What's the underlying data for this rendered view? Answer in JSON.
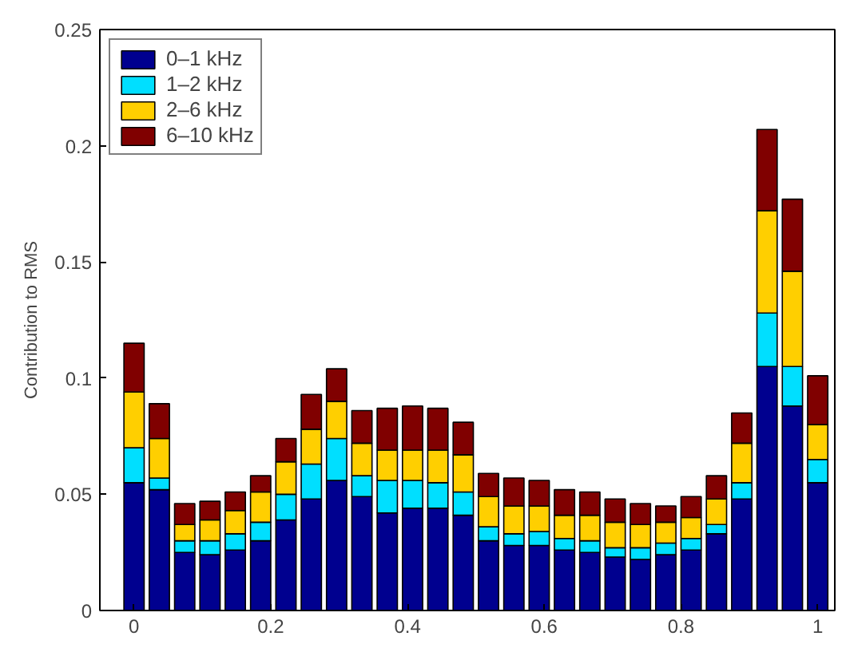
{
  "chart_data": {
    "type": "bar",
    "stacked": true,
    "ylabel": "Contribution to RMS",
    "x": [
      0,
      0.037,
      0.0741,
      0.1111,
      0.1481,
      0.1852,
      0.2222,
      0.2593,
      0.2963,
      0.3333,
      0.3704,
      0.4074,
      0.4444,
      0.4815,
      0.5185,
      0.5556,
      0.5926,
      0.6296,
      0.6667,
      0.7037,
      0.7407,
      0.7778,
      0.8148,
      0.8519,
      0.8889,
      0.9259,
      0.963,
      1
    ],
    "series": [
      {
        "name": "0–1 kHz",
        "color": "#00008f",
        "values": [
          0.055,
          0.052,
          0.025,
          0.024,
          0.026,
          0.03,
          0.039,
          0.048,
          0.056,
          0.049,
          0.042,
          0.044,
          0.044,
          0.041,
          0.03,
          0.028,
          0.028,
          0.026,
          0.025,
          0.023,
          0.022,
          0.024,
          0.026,
          0.033,
          0.048,
          0.105,
          0.088,
          0.055
        ]
      },
      {
        "name": "1–2 kHz",
        "color": "#00dfff",
        "values": [
          0.015,
          0.005,
          0.005,
          0.006,
          0.007,
          0.008,
          0.011,
          0.015,
          0.018,
          0.009,
          0.014,
          0.012,
          0.011,
          0.01,
          0.006,
          0.005,
          0.006,
          0.005,
          0.005,
          0.004,
          0.005,
          0.005,
          0.005,
          0.004,
          0.007,
          0.023,
          0.017,
          0.01
        ]
      },
      {
        "name": "2–6 kHz",
        "color": "#ffcf00",
        "values": [
          0.024,
          0.017,
          0.007,
          0.009,
          0.01,
          0.013,
          0.014,
          0.015,
          0.016,
          0.014,
          0.013,
          0.013,
          0.014,
          0.016,
          0.013,
          0.012,
          0.011,
          0.01,
          0.011,
          0.011,
          0.01,
          0.009,
          0.009,
          0.011,
          0.017,
          0.044,
          0.041,
          0.015
        ]
      },
      {
        "name": "6–10 kHz",
        "color": "#800000",
        "values": [
          0.021,
          0.015,
          0.009,
          0.008,
          0.008,
          0.007,
          0.01,
          0.015,
          0.014,
          0.014,
          0.018,
          0.019,
          0.018,
          0.014,
          0.01,
          0.012,
          0.011,
          0.011,
          0.01,
          0.01,
          0.009,
          0.007,
          0.009,
          0.01,
          0.013,
          0.035,
          0.031,
          0.021
        ]
      }
    ],
    "xlim": [
      -0.05,
      1.025
    ],
    "ylim": [
      0,
      0.25
    ],
    "xticks": [
      0,
      0.2,
      0.4,
      0.6,
      0.8,
      1
    ],
    "yticks": [
      0,
      0.05,
      0.1,
      0.15,
      0.2,
      0.25
    ],
    "grid": false,
    "legend": "top left"
  }
}
